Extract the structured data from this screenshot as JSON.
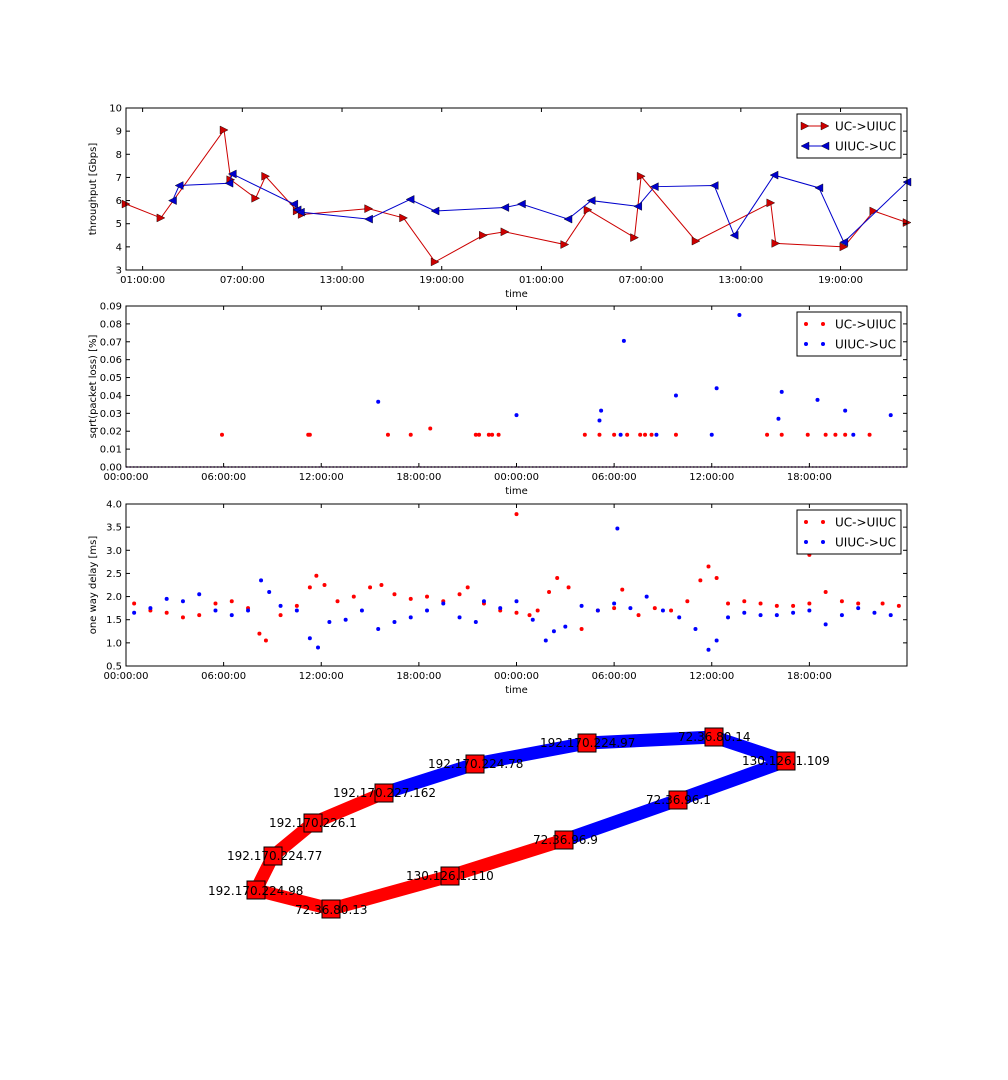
{
  "chart_data": [
    {
      "type": "line",
      "xlabel": "time",
      "ylabel": "throughput [Gbps]",
      "ylim": [
        3,
        10
      ],
      "yticks": [
        "3",
        "4",
        "5",
        "6",
        "7",
        "8",
        "9",
        "10"
      ],
      "xticks": [
        "01:00:00",
        "07:00:00",
        "13:00:00",
        "19:00:00",
        "01:00:00",
        "07:00:00",
        "13:00:00",
        "19:00:00"
      ],
      "xrange_hours": [
        0,
        47
      ],
      "xtick_hours": [
        1,
        7,
        13,
        19,
        25,
        31,
        37,
        43
      ],
      "legend_position": "upper right",
      "series": [
        {
          "name": "UC->UIUC",
          "color": "#cc0000",
          "marker": "triangle-right",
          "x_hours": [
            0.0,
            2.1,
            5.9,
            6.3,
            7.8,
            8.4,
            10.3,
            10.6,
            14.6,
            16.7,
            18.6,
            21.5,
            22.8,
            26.4,
            27.8,
            30.6,
            31.0,
            34.3,
            38.8,
            39.1,
            43.2,
            45.0,
            47.0
          ],
          "values": [
            5.85,
            5.25,
            9.05,
            6.9,
            6.1,
            7.05,
            5.55,
            5.4,
            5.65,
            5.25,
            3.35,
            4.5,
            4.65,
            4.1,
            5.6,
            4.4,
            7.05,
            4.25,
            5.9,
            4.15,
            4.0,
            5.55,
            5.05
          ]
        },
        {
          "name": "UIUC->UC",
          "color": "#0000cc",
          "marker": "triangle-left",
          "x_hours": [
            2.8,
            3.2,
            6.2,
            6.4,
            10.1,
            10.3,
            10.5,
            14.6,
            17.1,
            18.6,
            22.8,
            23.8,
            26.6,
            28.0,
            30.8,
            31.8,
            35.4,
            36.6,
            39.0,
            41.7,
            43.2,
            47.0
          ],
          "values": [
            6.0,
            6.65,
            6.75,
            7.15,
            5.85,
            5.6,
            5.5,
            5.2,
            6.05,
            5.55,
            5.7,
            5.85,
            5.2,
            6.0,
            5.75,
            6.6,
            6.65,
            4.5,
            7.1,
            6.55,
            4.2,
            6.8
          ]
        }
      ]
    },
    {
      "type": "scatter",
      "xlabel": "time",
      "ylabel": "sqrt(packet loss) [%]",
      "ylim": [
        0.0,
        0.09
      ],
      "yticks": [
        "0.00",
        "0.01",
        "0.02",
        "0.03",
        "0.04",
        "0.05",
        "0.06",
        "0.07",
        "0.08",
        "0.09"
      ],
      "xticks": [
        "00:00:00",
        "06:00:00",
        "12:00:00",
        "18:00:00",
        "00:00:00",
        "06:00:00",
        "12:00:00",
        "18:00:00"
      ],
      "xrange_hours": [
        0,
        48
      ],
      "xtick_hours": [
        0,
        6,
        12,
        18,
        24,
        30,
        36,
        42
      ],
      "legend_position": "upper right",
      "series": [
        {
          "name": "UC->UIUC",
          "color": "#ff0000",
          "x_hours": [
            5.9,
            11.2,
            11.3,
            16.1,
            17.5,
            18.7,
            21.5,
            21.7,
            22.3,
            22.5,
            22.9,
            28.2,
            29.1,
            30.0,
            30.8,
            31.6,
            31.9,
            32.3,
            33.8,
            39.4,
            40.3,
            41.9,
            43.0,
            43.6,
            44.2,
            45.7
          ],
          "values": [
            0.018,
            0.018,
            0.018,
            0.018,
            0.018,
            0.0215,
            0.018,
            0.018,
            0.018,
            0.018,
            0.018,
            0.018,
            0.018,
            0.018,
            0.018,
            0.018,
            0.018,
            0.018,
            0.018,
            0.018,
            0.018,
            0.018,
            0.018,
            0.018,
            0.018,
            0.018
          ]
        },
        {
          "name": "UIUC->UC",
          "color": "#0000ff",
          "x_hours": [
            15.5,
            24.0,
            29.1,
            29.2,
            30.4,
            30.6,
            32.6,
            33.8,
            36.0,
            36.3,
            37.7,
            40.1,
            40.3,
            42.5,
            44.2,
            44.7,
            47.0
          ],
          "values": [
            0.0365,
            0.029,
            0.026,
            0.0315,
            0.018,
            0.0705,
            0.018,
            0.04,
            0.018,
            0.044,
            0.085,
            0.027,
            0.042,
            0.0375,
            0.0315,
            0.018,
            0.029
          ]
        }
      ]
    },
    {
      "type": "scatter",
      "xlabel": "time",
      "ylabel": "one way delay [ms]",
      "ylim": [
        0.5,
        4.0
      ],
      "yticks": [
        "0.5",
        "1.0",
        "1.5",
        "2.0",
        "2.5",
        "3.0",
        "3.5",
        "4.0"
      ],
      "xticks": [
        "00:00:00",
        "06:00:00",
        "12:00:00",
        "18:00:00",
        "00:00:00",
        "06:00:00",
        "12:00:00",
        "18:00:00"
      ],
      "xrange_hours": [
        0,
        48
      ],
      "xtick_hours": [
        0,
        6,
        12,
        18,
        24,
        30,
        36,
        42
      ],
      "legend_position": "upper right",
      "series": [
        {
          "name": "UC->UIUC",
          "color": "#ff0000",
          "x_hours": [
            0.5,
            1.5,
            2.5,
            3.5,
            4.5,
            5.5,
            6.5,
            7.5,
            8.2,
            8.6,
            9.5,
            10.5,
            11.3,
            11.7,
            12.2,
            13.0,
            14.0,
            15.0,
            15.7,
            16.5,
            17.5,
            18.5,
            19.5,
            20.5,
            21.0,
            22.0,
            23.0,
            24.0,
            24.8,
            25.3,
            26.0,
            26.5,
            27.2,
            28.0,
            29.0,
            30.0,
            30.5,
            31.5,
            32.5,
            33.5,
            34.5,
            35.3,
            35.8,
            36.3,
            37.0,
            38.0,
            39.0,
            40.0,
            41.0,
            42.0,
            43.0,
            44.0,
            45.0,
            46.5,
            47.5,
            24.0,
            42.0
          ],
          "values": [
            1.85,
            1.7,
            1.65,
            1.55,
            1.6,
            1.85,
            1.9,
            1.75,
            1.2,
            1.05,
            1.6,
            1.8,
            2.2,
            2.45,
            2.25,
            1.9,
            2.0,
            2.2,
            2.25,
            2.05,
            1.95,
            2.0,
            1.9,
            2.05,
            2.2,
            1.85,
            1.7,
            1.65,
            1.6,
            1.7,
            2.1,
            2.4,
            2.2,
            1.3,
            1.7,
            1.75,
            2.15,
            1.6,
            1.75,
            1.7,
            1.9,
            2.35,
            2.65,
            2.4,
            1.85,
            1.9,
            1.85,
            1.8,
            1.8,
            1.85,
            2.1,
            1.9,
            1.85,
            1.85,
            1.8,
            3.78,
            2.9
          ]
        },
        {
          "name": "UIUC->UC",
          "color": "#0000ff",
          "x_hours": [
            0.5,
            1.5,
            2.5,
            3.5,
            4.5,
            5.5,
            6.5,
            7.5,
            8.3,
            8.8,
            9.5,
            10.5,
            11.3,
            11.8,
            12.5,
            13.5,
            14.5,
            15.5,
            16.5,
            17.5,
            18.5,
            19.5,
            20.5,
            21.5,
            22.0,
            23.0,
            24.0,
            25.0,
            25.8,
            26.3,
            27.0,
            28.0,
            29.0,
            30.0,
            31.0,
            32.0,
            33.0,
            34.0,
            35.0,
            35.8,
            36.3,
            37.0,
            38.0,
            39.0,
            40.0,
            41.0,
            42.0,
            43.0,
            44.0,
            45.0,
            46.0,
            47.0,
            30.2
          ],
          "values": [
            1.65,
            1.75,
            1.95,
            1.9,
            2.05,
            1.7,
            1.6,
            1.7,
            2.35,
            2.1,
            1.8,
            1.7,
            1.1,
            0.9,
            1.45,
            1.5,
            1.7,
            1.3,
            1.45,
            1.55,
            1.7,
            1.85,
            1.55,
            1.45,
            1.9,
            1.75,
            1.9,
            1.5,
            1.05,
            1.25,
            1.35,
            1.8,
            1.7,
            1.85,
            1.75,
            2.0,
            1.7,
            1.55,
            1.3,
            0.85,
            1.05,
            1.55,
            1.65,
            1.6,
            1.6,
            1.65,
            1.7,
            1.4,
            1.6,
            1.75,
            1.65,
            1.6,
            3.47
          ]
        }
      ]
    },
    {
      "type": "network-path",
      "path_a": {
        "color": "#ff0000",
        "nodes": [
          "72.36.80.13",
          "192.170.224.98",
          "192.170.224.77",
          "192.170.226.1",
          "192.170.227.162"
        ]
      },
      "path_b": {
        "color": "#0000ff",
        "nodes": [
          "192.170.227.162",
          "192.170.224.78",
          "192.170.224.97",
          "72.36.80.14",
          "130.126.1.109"
        ]
      },
      "path_c": {
        "color": "#ff0000",
        "nodes": [
          "72.36.80.13",
          "130.126.1.110",
          "72.36.96.9"
        ]
      },
      "path_d": {
        "color": "#0000ff",
        "nodes": [
          "72.36.96.9",
          "72.36.96.1",
          "130.126.1.109"
        ]
      },
      "node_color": "#ff0000",
      "node_labels": [
        "192.170.224.97",
        "72.36.80.14",
        "192.170.224.78",
        "130.126.1.109",
        "192.170.227.162",
        "72.36.96.1",
        "192.170.226.1",
        "72.36.96.9",
        "192.170.224.77",
        "130.126.1.110",
        "192.170.224.98",
        "72.36.80.13"
      ]
    }
  ]
}
